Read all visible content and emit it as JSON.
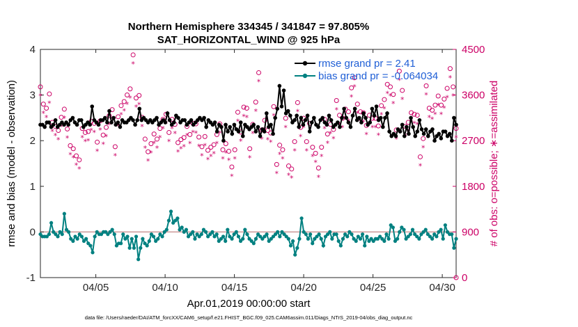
{
  "chart_data": {
    "type": "line",
    "title_line1": "Northern Hemisphere 334345 / 341847 = 97.805%",
    "title_line2": "SAT_HORIZONTAL_WIND @ 925 hPa",
    "xlabel": "Apr.01,2019 00:00:00 start",
    "ylabel_left": "rmse and bias (model - observation)",
    "ylabel_right": "# of obs: o=possible; ∗=assimilated",
    "footnote": "data file: /Users/raeder/DAI/ATM_forcXX/CAM6_setup/f.e21.FHIST_BGC.f09_025.CAM6assim.011/Diags_NTrS_2019-04/obs_diag_output.nc",
    "xlim_days": [
      1,
      31
    ],
    "x_ticks": [
      {
        "day": 5,
        "label": "04/05"
      },
      {
        "day": 10,
        "label": "04/10"
      },
      {
        "day": 15,
        "label": "04/15"
      },
      {
        "day": 20,
        "label": "04/20"
      },
      {
        "day": 25,
        "label": "04/25"
      },
      {
        "day": 30,
        "label": "04/30"
      }
    ],
    "ylim_left": [
      -1,
      4
    ],
    "yticks_left": [
      "-1",
      "0",
      "1",
      "2",
      "3",
      "4"
    ],
    "ylim_right": [
      0,
      4500
    ],
    "yticks_right": [
      "0",
      "900",
      "1800",
      "2700",
      "3600",
      "4500"
    ],
    "zero_line": 0,
    "colors": {
      "rmse": "#000000",
      "bias": "#008080",
      "obs": "#cc0066",
      "zero": "#cc9999"
    },
    "legend": [
      {
        "name": "rmse grand pr = 2.41",
        "color": "#000000"
      },
      {
        "name": "bias grand pr = -0.064034",
        "color": "#008080"
      }
    ],
    "series": [
      {
        "name": "rmse",
        "axis": "left",
        "values": [
          2.35,
          2.35,
          2.3,
          2.4,
          2.4,
          2.3,
          2.35,
          2.45,
          2.3,
          2.35,
          2.4,
          2.35,
          2.4,
          2.35,
          2.45,
          2.5,
          2.4,
          2.35,
          2.45,
          2.45,
          2.3,
          2.35,
          2.4,
          2.35,
          2.75,
          2.45,
          2.4,
          2.35,
          2.45,
          2.45,
          2.5,
          2.4,
          2.65,
          2.4,
          2.5,
          2.35,
          2.4,
          2.3,
          2.45,
          2.4,
          2.4,
          2.45,
          2.5,
          2.45,
          2.35,
          2.45,
          2.7,
          2.45,
          2.5,
          2.45,
          2.4,
          2.45,
          2.4,
          2.45,
          2.5,
          2.35,
          2.4,
          2.45,
          2.4,
          2.6,
          2.45,
          2.35,
          2.4,
          2.55,
          2.5,
          2.4,
          2.45,
          2.45,
          2.35,
          2.4,
          2.45,
          2.35,
          2.4,
          2.45,
          2.5,
          2.45,
          2.5,
          2.3,
          2.45,
          2.4,
          2.35,
          2.4,
          2.2,
          2.35,
          2.3,
          2.0,
          2.35,
          2.2,
          2.3,
          2.15,
          2.35,
          2.25,
          2.2,
          2.4,
          2.1,
          2.35,
          2.3,
          2.25,
          2.3,
          2.35,
          2.2,
          2.3,
          2.1,
          2.25,
          2.2,
          2.6,
          2.3,
          2.35,
          2.15,
          2.5,
          2.7,
          3.2,
          2.75,
          3.1,
          2.6,
          2.65,
          2.55,
          2.4,
          2.45,
          2.55,
          2.3,
          2.5,
          2.35,
          2.45,
          2.55,
          2.2,
          2.4,
          2.5,
          2.35,
          2.3,
          2.45,
          2.5,
          2.4,
          2.35,
          2.55,
          2.45,
          2.3,
          2.35,
          2.4,
          2.3,
          2.5,
          2.7,
          2.5,
          2.4,
          2.3,
          2.55,
          2.7,
          2.45,
          2.5,
          2.4,
          2.6,
          2.5,
          2.35,
          2.4,
          2.7,
          2.55,
          2.75,
          2.45,
          2.5,
          2.3,
          2.5,
          2.6,
          2.2,
          2.1,
          2.15,
          2.1,
          2.25,
          2.2,
          2.35,
          2.1,
          2.3,
          2.15,
          2.5,
          2.3,
          2.1,
          2.2,
          2.45,
          2.25,
          2.15,
          2.25,
          2.1,
          2.2,
          2.25,
          2.0,
          2.1,
          2.15,
          2.05,
          2.2,
          2.2,
          2.1,
          2.15,
          2.0,
          2.5,
          2.35
        ]
      },
      {
        "name": "bias",
        "axis": "left",
        "values": [
          -0.05,
          -0.1,
          -0.1,
          -0.1,
          -0.05,
          0.2,
          0.0,
          -0.05,
          -0.1,
          0.0,
          -0.05,
          0.4,
          0.05,
          0.0,
          -0.15,
          -0.2,
          -0.1,
          -0.15,
          -0.05,
          -0.1,
          -0.2,
          -0.15,
          -0.25,
          -0.3,
          -0.45,
          -0.1,
          0.0,
          -0.05,
          -0.05,
          0.0,
          0.0,
          -0.05,
          0.0,
          0.05,
          -0.05,
          -0.3,
          -0.25,
          -0.25,
          -0.05,
          -0.15,
          -0.1,
          -0.35,
          -0.15,
          -0.35,
          -0.1,
          -0.6,
          -0.35,
          -0.15,
          -0.25,
          -0.3,
          -0.2,
          -0.05,
          -0.1,
          -0.2,
          -0.15,
          -0.05,
          -0.1,
          0.0,
          0.05,
          0.25,
          0.45,
          0.2,
          0.25,
          0.3,
          0.05,
          0.1,
          0.0,
          0.05,
          -0.1,
          -0.05,
          0.0,
          -0.15,
          -0.05,
          -0.1,
          -0.05,
          0.05,
          0.0,
          -0.1,
          -0.05,
          0.0,
          -0.1,
          -0.05,
          -0.2,
          -0.15,
          -0.1,
          -0.2,
          0.05,
          -0.1,
          -0.15,
          -0.05,
          0.0,
          -0.1,
          -0.2,
          -0.15,
          0.05,
          -0.05,
          -0.15,
          -0.2,
          -0.25,
          -0.15,
          -0.05,
          -0.1,
          -0.15,
          -0.1,
          -0.05,
          -0.2,
          -0.15,
          -0.1,
          -0.05,
          0.0,
          -0.1,
          0.0,
          -0.05,
          -0.1,
          -0.15,
          -0.3,
          -0.2,
          -0.5,
          -0.35,
          -0.15,
          0.3,
          0.0,
          -0.05,
          -0.15,
          -0.05,
          -0.25,
          -0.15,
          -0.1,
          -0.05,
          -0.15,
          -0.3,
          -0.1,
          -0.05,
          0.0,
          -0.15,
          -0.05,
          -0.05,
          -0.2,
          -0.3,
          -0.15,
          -0.05,
          -0.1,
          0.0,
          -0.05,
          -0.15,
          -0.2,
          -0.1,
          -0.15,
          -0.05,
          -0.3,
          -0.1,
          -0.2,
          -0.15,
          -0.2,
          -0.15,
          -0.15,
          -0.1,
          -0.15,
          -0.2,
          -0.05,
          -0.15,
          0.15,
          0.1,
          -0.2,
          -0.15,
          0.0,
          0.1,
          0.05,
          -0.15,
          -0.1,
          -0.05,
          0.05,
          -0.05,
          -0.1,
          -0.15,
          -0.05,
          0.0,
          0.05,
          -0.05,
          -0.1,
          -0.15,
          -0.05,
          -0.1,
          0.0,
          0.05,
          -0.15,
          0.15,
          0.0,
          -0.05,
          -0.05,
          -0.35,
          -0.15
        ]
      },
      {
        "name": "possible obs",
        "axis": "right",
        "marker": "o",
        "values": [
          3720,
          3380,
          3300,
          3580,
          3020,
          2940,
          2860,
          3120,
          3280,
          2890,
          2560,
          2500,
          2360,
          2280,
          2900,
          2820,
          2840,
          3040,
          3000,
          2630,
          3050,
          2770,
          2920,
          3150,
          3270,
          2540,
          3130,
          3350,
          3430,
          3560,
          3680,
          4350,
          3500,
          3550,
          3120,
          2690,
          2440,
          2600,
          2790,
          2690,
          2900,
          3080,
          3180,
          2820,
          3080,
          2980,
          2620,
          2680,
          2720,
          2940,
          2780,
          3000,
          2990,
          2730,
          2540,
          2740,
          2470,
          2530,
          2580,
          2780,
          2990,
          2480,
          2600,
          2450,
          2140,
          2480,
          3220,
          2830,
          3320,
          3300,
          2500,
          2980,
          3420,
          4000,
          2870,
          3060,
          2860,
          2810,
          3330,
          2190,
          2570,
          2480,
          3100,
          2160,
          2100,
          2640,
          3410,
          2920,
          3100,
          2640,
          3000,
          2530,
          2410,
          2120,
          2530,
          3080,
          2790,
          2980,
          2880,
          3450,
          3160,
          3100,
          3280,
          3230,
          3700,
          3900,
          3380,
          3230,
          3210,
          2960,
          3160,
          3100,
          3100,
          2950,
          3350,
          3470,
          3770,
          3720,
          3570,
          2870,
          4030,
          3650,
          2940,
          3020,
          3210,
          3180,
          3160,
          2340,
          2700,
          3740,
          3300,
          3260,
          3360,
          3540,
          3360,
          3480,
          3690,
          4080,
          3720,
          2900
        ]
      },
      {
        "name": "assimilated obs",
        "axis": "right",
        "marker": "*",
        "values": [
          3620,
          3280,
          3200,
          3480,
          2920,
          2840,
          2760,
          3020,
          3180,
          2790,
          2460,
          2400,
          2260,
          2180,
          2800,
          2720,
          2740,
          2940,
          2900,
          2530,
          2950,
          2670,
          2820,
          3050,
          3170,
          2440,
          3030,
          3250,
          3330,
          3460,
          3580,
          4250,
          3400,
          3450,
          3020,
          2590,
          2340,
          2500,
          2690,
          2590,
          2800,
          2980,
          3080,
          2720,
          2980,
          2880,
          2520,
          2580,
          2620,
          2840,
          2680,
          2900,
          2890,
          2630,
          2440,
          2640,
          2370,
          2430,
          2480,
          2680,
          2890,
          2380,
          2500,
          2350,
          2040,
          2380,
          3120,
          2730,
          3220,
          3200,
          2400,
          2880,
          3320,
          3900,
          2770,
          2960,
          2760,
          2710,
          3230,
          2090,
          2470,
          2380,
          3000,
          2060,
          2000,
          2540,
          3310,
          2820,
          3000,
          2540,
          2900,
          2430,
          2310,
          2020,
          2430,
          2980,
          2690,
          2880,
          2780,
          3350,
          3060,
          3000,
          3180,
          3130,
          3600,
          3800,
          3280,
          3130,
          3110,
          2860,
          3060,
          3000,
          3000,
          2850,
          3250,
          3370,
          3670,
          3620,
          3470,
          2770,
          3930,
          3550,
          2840,
          2920,
          3110,
          3080,
          3060,
          2240,
          2600,
          3640,
          3200,
          3160,
          3260,
          3440,
          3260,
          3380,
          3590,
          3980,
          3620,
          2800
        ]
      }
    ]
  }
}
